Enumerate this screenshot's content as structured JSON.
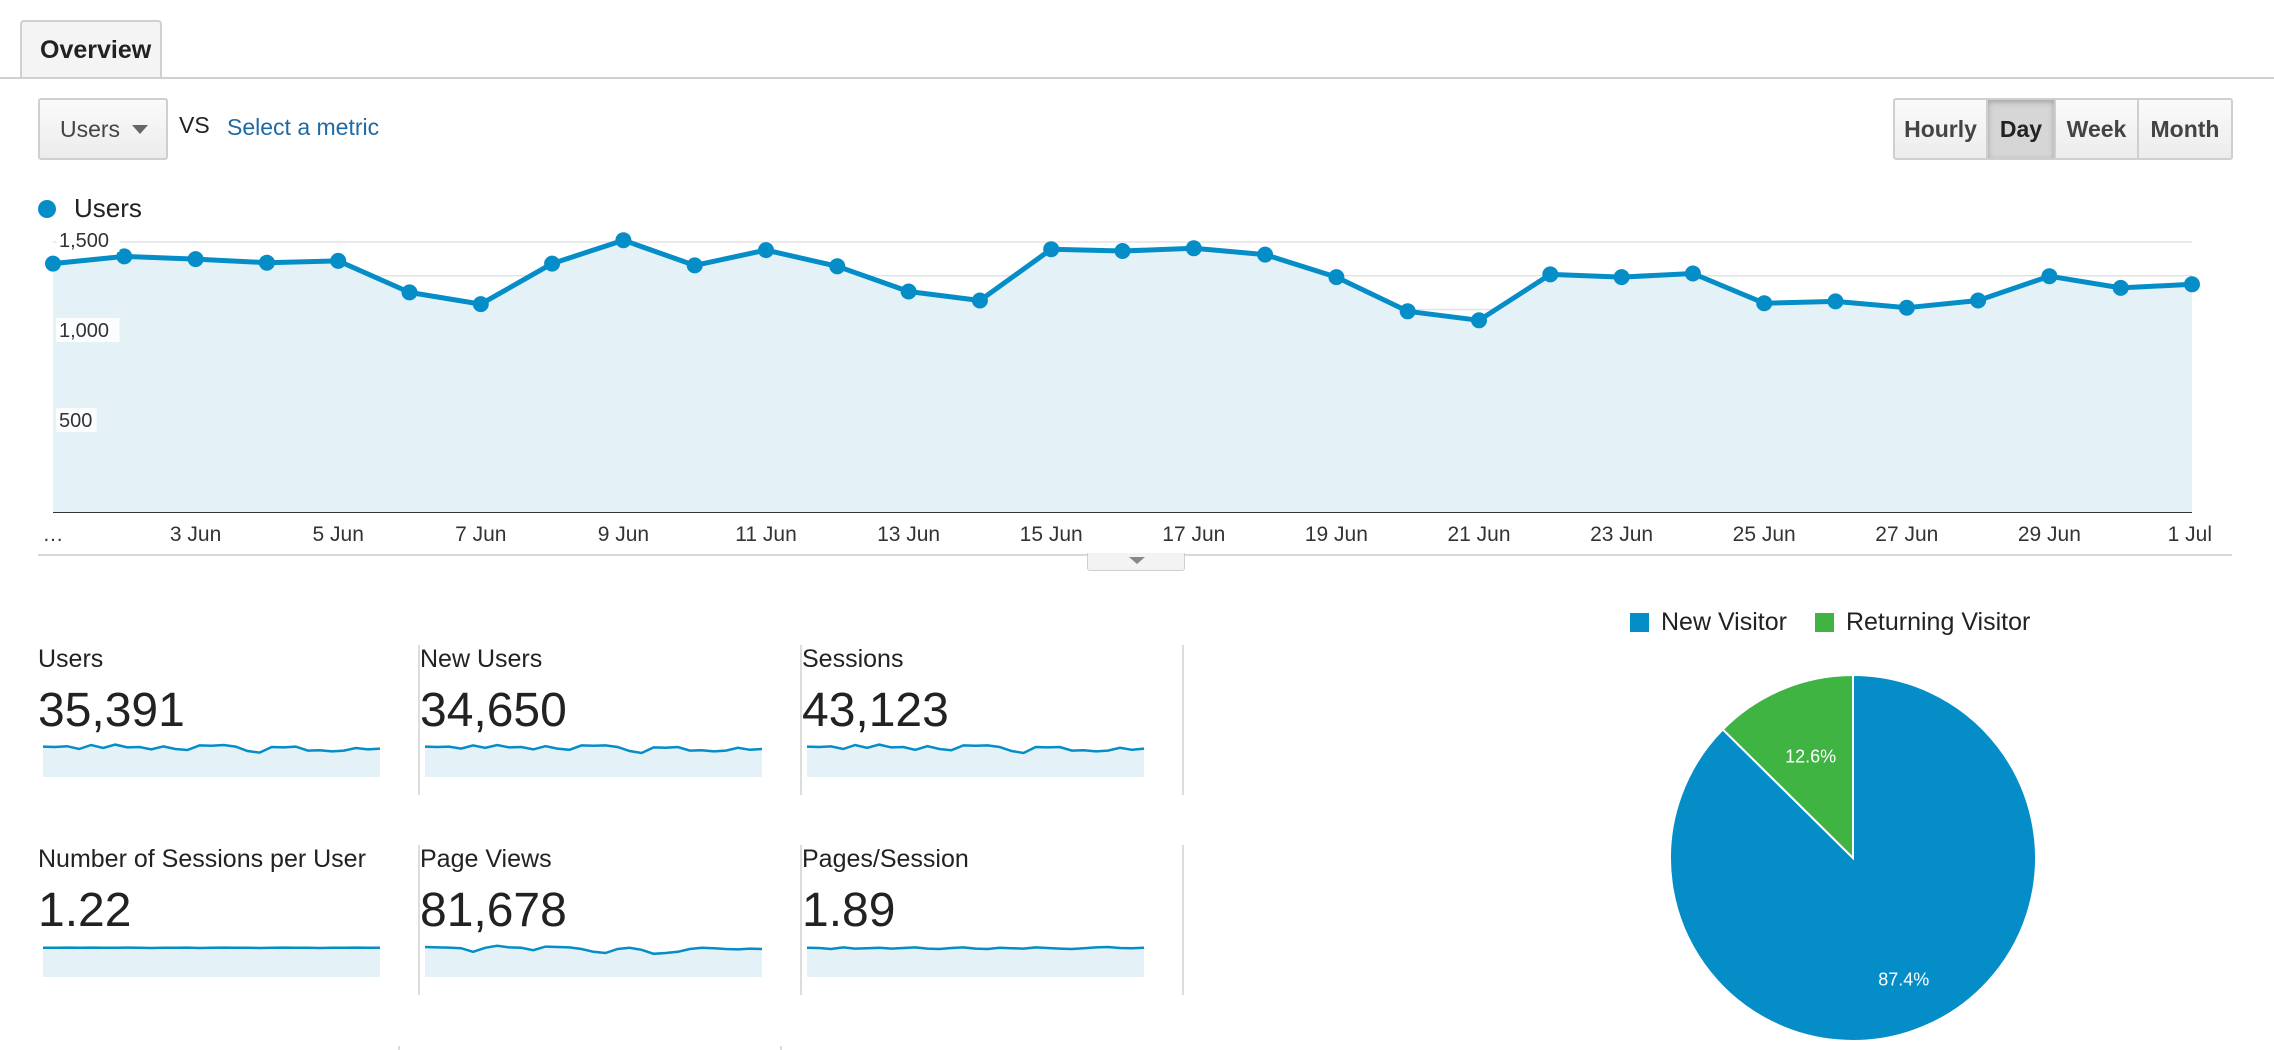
{
  "tabs": [
    {
      "label": "Overview",
      "active": true
    }
  ],
  "metric_selector": {
    "value": "Users",
    "vs_label": "VS",
    "secondary_link": "Select a metric"
  },
  "granularity": {
    "options": [
      "Hourly",
      "Day",
      "Week",
      "Month"
    ],
    "selected": "Day"
  },
  "colors": {
    "line": "#058dc7",
    "area": "#e4f2f8",
    "new_visitor": "#058dc7",
    "returning_visitor": "#3fb443"
  },
  "chart_data": [
    {
      "type": "area",
      "legend": [
        "Users"
      ],
      "x_tick_labels": [
        "…",
        "3 Jun",
        "5 Jun",
        "7 Jun",
        "9 Jun",
        "11 Jun",
        "13 Jun",
        "15 Jun",
        "17 Jun",
        "19 Jun",
        "21 Jun",
        "23 Jun",
        "25 Jun",
        "27 Jun",
        "29 Jun",
        "1 Jul"
      ],
      "y_ticks": [
        500,
        1000,
        1500
      ],
      "y_tick_labels": [
        "500",
        "1,000",
        "1,500"
      ],
      "ylim": [
        0,
        1500
      ],
      "grid": true,
      "series": [
        {
          "name": "Users",
          "values": [
            1380,
            1420,
            1405,
            1385,
            1395,
            1220,
            1155,
            1380,
            1510,
            1370,
            1455,
            1365,
            1225,
            1175,
            1460,
            1450,
            1465,
            1430,
            1305,
            1115,
            1065,
            1320,
            1305,
            1325,
            1160,
            1170,
            1135,
            1175,
            1310,
            1245,
            1265
          ]
        }
      ]
    },
    {
      "type": "pie",
      "legend": [
        "New Visitor",
        "Returning Visitor"
      ],
      "slices": [
        {
          "label": "New Visitor",
          "value": 87.4,
          "display": "87.4%"
        },
        {
          "label": "Returning Visitor",
          "value": 12.6,
          "display": "12.6%"
        }
      ]
    }
  ],
  "scorecards": [
    {
      "label": "Users",
      "value": "35,391",
      "spark": [
        0.62,
        0.6,
        0.64,
        0.5,
        0.7,
        0.55,
        0.72,
        0.58,
        0.6,
        0.48,
        0.63,
        0.5,
        0.45,
        0.68,
        0.66,
        0.7,
        0.62,
        0.4,
        0.32,
        0.6,
        0.58,
        0.62,
        0.42,
        0.44,
        0.38,
        0.42,
        0.55,
        0.48,
        0.52
      ]
    },
    {
      "label": "New Users",
      "value": "34,650",
      "spark": [
        0.62,
        0.6,
        0.62,
        0.52,
        0.68,
        0.56,
        0.7,
        0.58,
        0.6,
        0.48,
        0.64,
        0.52,
        0.46,
        0.68,
        0.66,
        0.68,
        0.6,
        0.4,
        0.3,
        0.58,
        0.56,
        0.6,
        0.42,
        0.44,
        0.38,
        0.42,
        0.56,
        0.46,
        0.5
      ]
    },
    {
      "label": "Sessions",
      "value": "43,123",
      "spark": [
        0.62,
        0.6,
        0.63,
        0.5,
        0.7,
        0.56,
        0.72,
        0.58,
        0.6,
        0.46,
        0.64,
        0.5,
        0.44,
        0.68,
        0.66,
        0.68,
        0.6,
        0.4,
        0.3,
        0.6,
        0.58,
        0.6,
        0.42,
        0.44,
        0.38,
        0.42,
        0.56,
        0.46,
        0.52
      ]
    },
    {
      "label": "Number of Sessions per User",
      "value": "1.22",
      "spark": [
        0.56,
        0.56,
        0.57,
        0.56,
        0.57,
        0.56,
        0.56,
        0.57,
        0.56,
        0.55,
        0.56,
        0.56,
        0.57,
        0.55,
        0.56,
        0.57,
        0.56,
        0.56,
        0.55,
        0.56,
        0.57,
        0.56,
        0.56,
        0.55,
        0.56,
        0.56,
        0.57,
        0.56,
        0.56
      ]
    },
    {
      "label": "Page Views",
      "value": "81,678",
      "spark": [
        0.6,
        0.58,
        0.57,
        0.54,
        0.36,
        0.56,
        0.66,
        0.58,
        0.56,
        0.44,
        0.62,
        0.6,
        0.58,
        0.5,
        0.36,
        0.3,
        0.5,
        0.56,
        0.46,
        0.26,
        0.3,
        0.36,
        0.5,
        0.56,
        0.54,
        0.5,
        0.48,
        0.52,
        0.5
      ]
    },
    {
      "label": "Pages/Session",
      "value": "1.89",
      "spark": [
        0.56,
        0.55,
        0.5,
        0.58,
        0.52,
        0.54,
        0.56,
        0.52,
        0.55,
        0.58,
        0.52,
        0.5,
        0.55,
        0.58,
        0.52,
        0.5,
        0.56,
        0.54,
        0.52,
        0.58,
        0.55,
        0.52,
        0.5,
        0.54,
        0.58,
        0.6,
        0.55,
        0.54,
        0.56
      ]
    }
  ]
}
